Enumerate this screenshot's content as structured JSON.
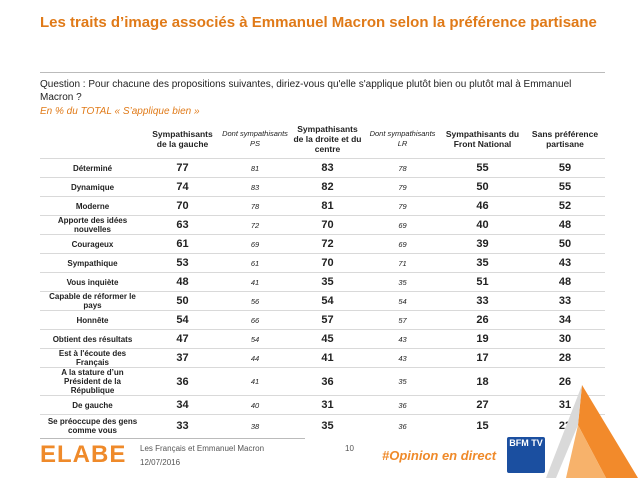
{
  "title": "Les traits d’image associés à Emmanuel Macron selon la préférence partisane",
  "question": "Question : Pour chacune des propositions suivantes, diriez-vous qu'elle s'applique plutôt bien ou plutôt mal à Emmanuel Macron ?",
  "subtitle": "En % du TOTAL « S’applique bien »",
  "table": {
    "headers": [
      "Sympathisants de la gauche",
      "Dont sympathisants PS",
      "Sympathisants de la droite et du centre",
      "Dont sympathisants LR",
      "Sympathisants du Front National",
      "Sans préférence partisane"
    ],
    "rows": [
      {
        "label": "Déterminé",
        "values": [
          "77",
          "81",
          "83",
          "78",
          "55",
          "59"
        ]
      },
      {
        "label": "Dynamique",
        "values": [
          "74",
          "83",
          "82",
          "79",
          "50",
          "55"
        ]
      },
      {
        "label": "Moderne",
        "values": [
          "70",
          "78",
          "81",
          "79",
          "46",
          "52"
        ]
      },
      {
        "label": "Apporte des idées nouvelles",
        "values": [
          "63",
          "72",
          "70",
          "69",
          "40",
          "48"
        ]
      },
      {
        "label": "Courageux",
        "values": [
          "61",
          "69",
          "72",
          "69",
          "39",
          "50"
        ]
      },
      {
        "label": "Sympathique",
        "values": [
          "53",
          "61",
          "70",
          "71",
          "35",
          "43"
        ]
      },
      {
        "label": "Vous inquiète",
        "values": [
          "48",
          "41",
          "35",
          "35",
          "51",
          "48"
        ]
      },
      {
        "label": "Capable de réformer le pays",
        "values": [
          "50",
          "56",
          "54",
          "54",
          "33",
          "33"
        ]
      },
      {
        "label": "Honnête",
        "values": [
          "54",
          "66",
          "57",
          "57",
          "26",
          "34"
        ]
      },
      {
        "label": "Obtient des résultats",
        "values": [
          "47",
          "54",
          "45",
          "43",
          "19",
          "30"
        ]
      },
      {
        "label": "Est à l'écoute des Français",
        "values": [
          "37",
          "44",
          "41",
          "43",
          "17",
          "28"
        ]
      },
      {
        "label": "A la stature d’un Président de la République",
        "values": [
          "36",
          "41",
          "36",
          "35",
          "18",
          "26"
        ]
      },
      {
        "label": "De gauche",
        "values": [
          "34",
          "40",
          "31",
          "36",
          "27",
          "31"
        ]
      },
      {
        "label": "Se préoccupe des gens comme vous",
        "values": [
          "33",
          "38",
          "35",
          "36",
          "15",
          "22"
        ]
      }
    ]
  },
  "footer": {
    "logo": "ELABE",
    "report_title": "Les Français et Emmanuel Macron",
    "date": "12/07/2016",
    "page_number": "10",
    "hashtag": "#Opinion en direct",
    "partner_logo": "BFM TV"
  },
  "colors": {
    "accent": "#e07a18",
    "logo": "#ef8a2a",
    "partner": "#1b4fa0"
  }
}
